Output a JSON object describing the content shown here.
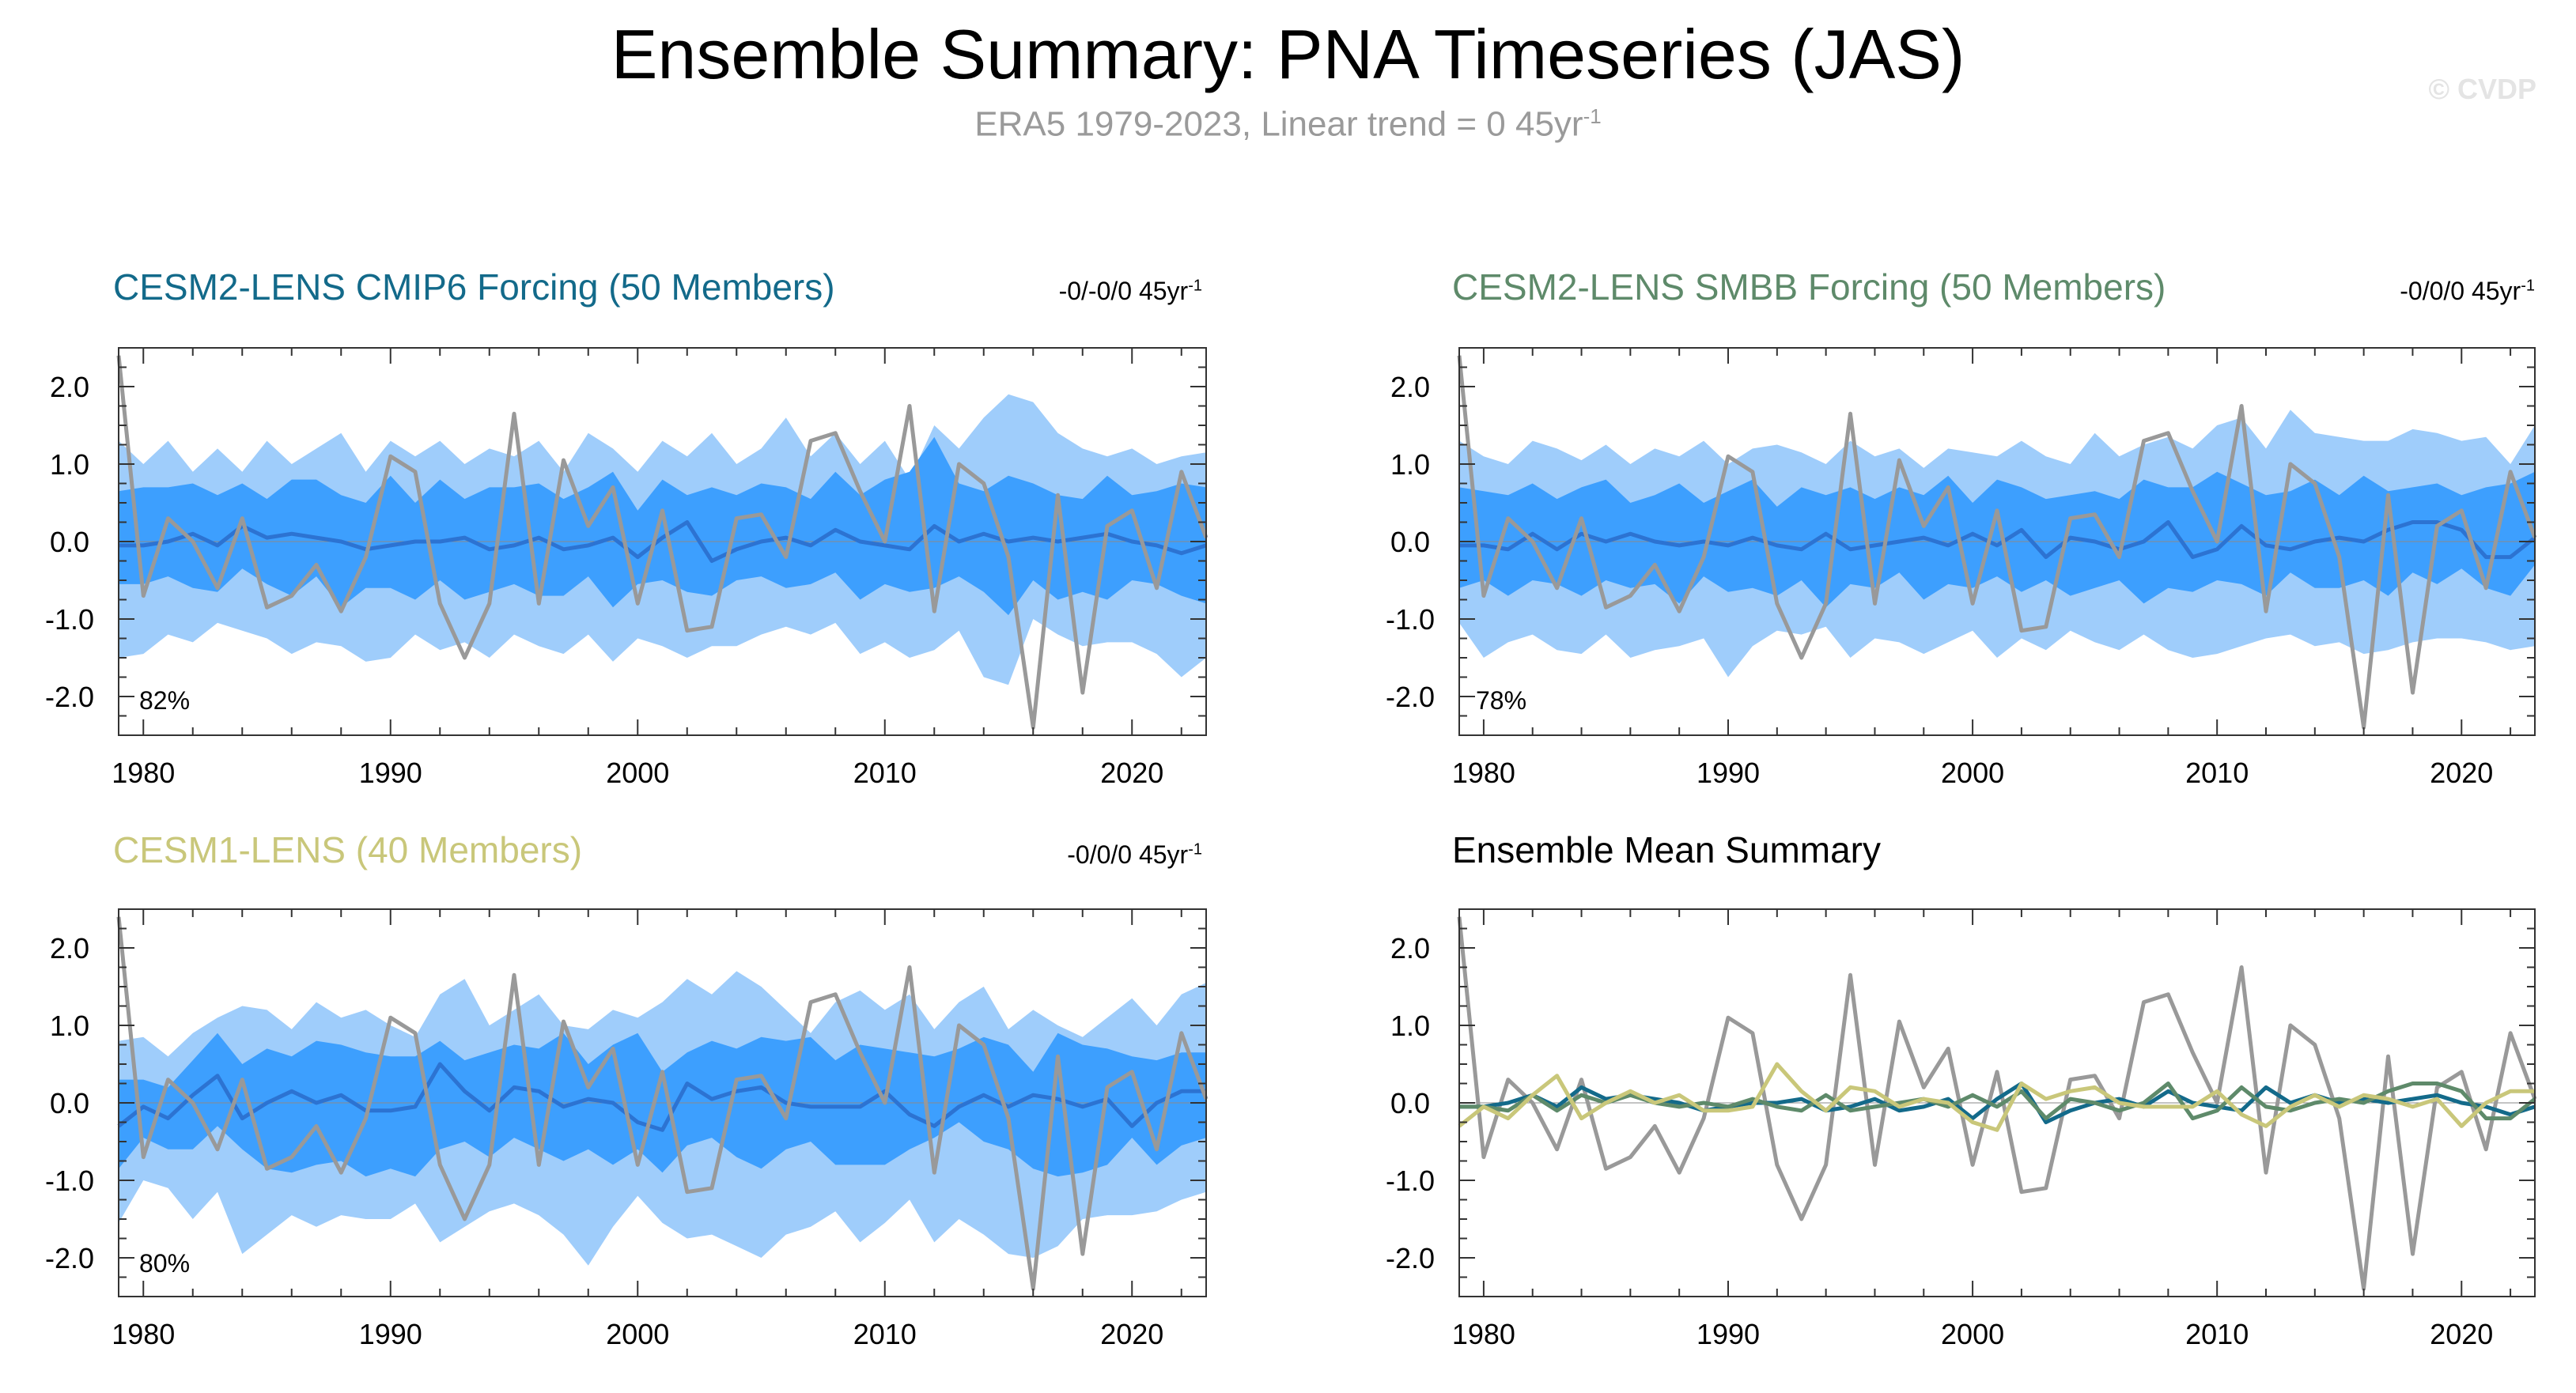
{
  "figure": {
    "title": "Ensemble Summary: PNA Timeseries (JAS)",
    "subtitle_main": "ERA5 1979-2023, Linear trend = 0 45yr",
    "subtitle_sup": "-1",
    "watermark": "© CVDP"
  },
  "colors": {
    "obs": "#999999",
    "outer_band": "#9fcdfb",
    "inner_band": "#3d9ffe",
    "cmip6": "#136a8a",
    "smbb": "#5e8a6a",
    "cesm1": "#c9c77a",
    "mean_line": "#2c73d2",
    "axis": "#333333"
  },
  "panels": [
    {
      "title": "CESM2-LENS CMIP6 Forcing (50 Members)",
      "title_color": "#136a8a",
      "trend": "-0/-0/0 45yr",
      "trend_sup": "-1",
      "percent": "82%"
    },
    {
      "title": "CESM2-LENS SMBB Forcing (50 Members)",
      "title_color": "#5e8a6a",
      "trend": "-0/0/0 45yr",
      "trend_sup": "-1",
      "percent": "78%"
    },
    {
      "title": "CESM1-LENS (40 Members)",
      "title_color": "#c9c77a",
      "trend": "-0/0/0 45yr",
      "trend_sup": "-1",
      "percent": "80%"
    },
    {
      "title": "Ensemble Mean Summary",
      "title_color": "#000000",
      "trend": "",
      "trend_sup": "",
      "percent": ""
    }
  ],
  "chart_data": [
    {
      "type": "area",
      "panel": "CESM2-LENS CMIP6 Forcing (50 Members)",
      "xlim": [
        1979,
        2023
      ],
      "ylim": [
        -2.5,
        2.5
      ],
      "xticks": [
        "1980",
        "1990",
        "2000",
        "2010",
        "2020"
      ],
      "yticks": [
        "2.0",
        "1.0",
        "0.0",
        "-1.0",
        "-2.0"
      ],
      "x_start": 1979,
      "obs": [
        2.4,
        -0.7,
        0.3,
        0.0,
        -0.6,
        0.3,
        -0.85,
        -0.7,
        -0.3,
        -0.9,
        -0.2,
        1.1,
        0.9,
        -0.8,
        -1.5,
        -0.8,
        1.65,
        -0.8,
        1.05,
        0.2,
        0.7,
        -0.8,
        0.4,
        -1.15,
        -1.1,
        0.3,
        0.35,
        -0.2,
        1.3,
        1.4,
        0.65,
        0.0,
        1.75,
        -0.9,
        1.0,
        0.75,
        -0.2,
        -2.4,
        0.6,
        -1.95,
        0.2,
        0.4,
        -0.6,
        0.9,
        0.05
      ],
      "outer_high": [
        1.3,
        1.0,
        1.3,
        0.9,
        1.2,
        0.9,
        1.3,
        1.0,
        1.2,
        1.4,
        0.9,
        1.3,
        1.1,
        1.3,
        1.0,
        1.2,
        1.1,
        1.3,
        0.9,
        1.4,
        1.2,
        0.9,
        1.3,
        1.1,
        1.4,
        1.0,
        1.2,
        1.6,
        1.1,
        1.4,
        1.0,
        1.3,
        0.8,
        1.5,
        1.2,
        1.6,
        1.9,
        1.8,
        1.4,
        1.2,
        1.1,
        1.2,
        1.0,
        1.1,
        1.15
      ],
      "outer_low": [
        -1.5,
        -1.45,
        -1.2,
        -1.3,
        -1.05,
        -1.15,
        -1.25,
        -1.45,
        -1.3,
        -1.35,
        -1.55,
        -1.5,
        -1.2,
        -1.4,
        -1.3,
        -1.5,
        -1.2,
        -1.35,
        -1.45,
        -1.2,
        -1.55,
        -1.25,
        -1.35,
        -1.5,
        -1.35,
        -1.35,
        -1.2,
        -1.1,
        -1.2,
        -1.05,
        -1.45,
        -1.3,
        -1.5,
        -1.4,
        -1.15,
        -1.75,
        -1.85,
        -1.0,
        -1.2,
        -1.35,
        -1.3,
        -1.3,
        -1.45,
        -1.75,
        -1.5
      ],
      "inner_high": [
        0.65,
        0.7,
        0.7,
        0.75,
        0.6,
        0.75,
        0.55,
        0.8,
        0.8,
        0.6,
        0.5,
        0.85,
        0.5,
        0.8,
        0.55,
        0.7,
        0.7,
        0.75,
        0.55,
        0.7,
        0.9,
        0.4,
        0.8,
        0.6,
        0.7,
        0.6,
        0.75,
        0.7,
        0.55,
        0.9,
        0.6,
        0.8,
        0.9,
        1.35,
        0.75,
        0.65,
        0.85,
        0.75,
        0.6,
        0.55,
        0.85,
        0.6,
        0.65,
        0.75,
        0.7
      ],
      "inner_low": [
        -0.55,
        -0.55,
        -0.45,
        -0.6,
        -0.65,
        -0.35,
        -0.55,
        -0.7,
        -0.45,
        -0.85,
        -0.6,
        -0.6,
        -0.75,
        -0.5,
        -0.75,
        -0.65,
        -0.55,
        -0.7,
        -0.7,
        -0.45,
        -0.85,
        -0.55,
        -0.5,
        -0.65,
        -0.7,
        -0.5,
        -0.45,
        -0.6,
        -0.55,
        -0.4,
        -0.75,
        -0.55,
        -0.65,
        -0.6,
        -0.45,
        -0.65,
        -0.95,
        -0.5,
        -0.75,
        -0.65,
        -0.75,
        -0.5,
        -0.55,
        -0.7,
        -0.8
      ],
      "mean": [
        -0.05,
        -0.05,
        0.0,
        0.1,
        -0.05,
        0.2,
        0.05,
        0.1,
        0.05,
        0.0,
        -0.1,
        -0.05,
        0.0,
        0.0,
        0.05,
        -0.1,
        -0.05,
        0.05,
        -0.1,
        -0.05,
        0.05,
        -0.2,
        0.05,
        0.25,
        -0.25,
        -0.1,
        0.0,
        0.05,
        -0.05,
        0.15,
        0.0,
        -0.05,
        -0.1,
        0.2,
        0.0,
        0.1,
        0.0,
        0.05,
        0.0,
        0.05,
        0.1,
        0.0,
        -0.05,
        -0.15,
        -0.05
      ]
    },
    {
      "type": "area",
      "panel": "CESM2-LENS SMBB Forcing (50 Members)",
      "xlim": [
        1979,
        2023
      ],
      "ylim": [
        -2.5,
        2.5
      ],
      "xticks": [
        "1980",
        "1990",
        "2000",
        "2010",
        "2020"
      ],
      "yticks": [
        "2.0",
        "1.0",
        "0.0",
        "-1.0",
        "-2.0"
      ],
      "x_start": 1979,
      "obs": [
        2.4,
        -0.7,
        0.3,
        0.0,
        -0.6,
        0.3,
        -0.85,
        -0.7,
        -0.3,
        -0.9,
        -0.2,
        1.1,
        0.9,
        -0.8,
        -1.5,
        -0.8,
        1.65,
        -0.8,
        1.05,
        0.2,
        0.7,
        -0.8,
        0.4,
        -1.15,
        -1.1,
        0.3,
        0.35,
        -0.2,
        1.3,
        1.4,
        0.65,
        0.0,
        1.75,
        -0.9,
        1.0,
        0.75,
        -0.2,
        -2.4,
        0.6,
        -1.95,
        0.2,
        0.4,
        -0.6,
        0.9,
        0.05
      ],
      "outer_high": [
        1.3,
        1.1,
        1.0,
        1.3,
        1.2,
        1.05,
        1.25,
        1.0,
        1.2,
        1.1,
        1.3,
        1.0,
        1.2,
        1.25,
        1.15,
        1.0,
        1.3,
        1.1,
        1.2,
        0.95,
        1.2,
        1.15,
        1.1,
        1.3,
        1.1,
        1.0,
        1.4,
        1.1,
        1.25,
        1.35,
        1.2,
        1.5,
        1.6,
        1.2,
        1.7,
        1.4,
        1.35,
        1.3,
        1.3,
        1.45,
        1.4,
        1.3,
        1.35,
        1.0,
        1.5
      ],
      "outer_low": [
        -1.05,
        -1.5,
        -1.3,
        -1.2,
        -1.4,
        -1.45,
        -1.2,
        -1.5,
        -1.4,
        -1.35,
        -1.25,
        -1.75,
        -1.35,
        -1.15,
        -1.2,
        -1.1,
        -1.5,
        -1.25,
        -1.3,
        -1.45,
        -1.3,
        -1.15,
        -1.5,
        -1.25,
        -1.4,
        -1.15,
        -1.3,
        -1.4,
        -1.2,
        -1.4,
        -1.5,
        -1.45,
        -1.35,
        -1.25,
        -1.2,
        -1.35,
        -1.3,
        -1.45,
        -1.4,
        -1.3,
        -1.25,
        -1.25,
        -1.3,
        -1.4,
        -1.35
      ],
      "inner_high": [
        0.7,
        0.65,
        0.6,
        0.75,
        0.55,
        0.7,
        0.8,
        0.5,
        0.6,
        0.75,
        0.5,
        0.65,
        0.8,
        0.45,
        0.7,
        0.6,
        0.7,
        0.55,
        0.7,
        0.6,
        0.85,
        0.5,
        0.8,
        0.7,
        0.55,
        0.6,
        0.65,
        0.55,
        0.8,
        0.7,
        0.7,
        0.9,
        0.75,
        0.6,
        0.65,
        0.8,
        0.6,
        0.85,
        0.65,
        0.7,
        0.75,
        0.6,
        0.7,
        0.75,
        0.9
      ],
      "inner_low": [
        -0.6,
        -0.5,
        -0.7,
        -0.5,
        -0.55,
        -0.7,
        -0.5,
        -0.6,
        -0.55,
        -0.8,
        -0.45,
        -0.65,
        -0.6,
        -0.7,
        -0.5,
        -0.85,
        -0.55,
        -0.6,
        -0.4,
        -0.75,
        -0.55,
        -0.6,
        -0.45,
        -0.65,
        -0.5,
        -0.7,
        -0.6,
        -0.5,
        -0.8,
        -0.6,
        -0.65,
        -0.5,
        -0.55,
        -0.7,
        -0.4,
        -0.6,
        -0.6,
        -0.5,
        -0.7,
        -0.4,
        -0.55,
        -0.35,
        -0.6,
        -0.7,
        -0.3
      ],
      "mean": [
        -0.05,
        -0.05,
        -0.1,
        0.1,
        -0.1,
        0.1,
        0.0,
        0.1,
        0.0,
        -0.05,
        0.0,
        -0.05,
        0.05,
        -0.05,
        -0.1,
        0.1,
        -0.1,
        -0.05,
        0.0,
        0.05,
        -0.05,
        0.1,
        -0.05,
        0.15,
        -0.2,
        0.05,
        0.0,
        -0.1,
        0.0,
        0.25,
        -0.2,
        -0.1,
        0.2,
        -0.05,
        -0.1,
        0.0,
        0.05,
        0.0,
        0.15,
        0.25,
        0.25,
        0.15,
        -0.2,
        -0.2,
        0.05
      ]
    },
    {
      "type": "area",
      "panel": "CESM1-LENS (40 Members)",
      "xlim": [
        1979,
        2023
      ],
      "ylim": [
        -2.5,
        2.5
      ],
      "xticks": [
        "1980",
        "1990",
        "2000",
        "2010",
        "2020"
      ],
      "yticks": [
        "2.0",
        "1.0",
        "0.0",
        "-1.0",
        "-2.0"
      ],
      "x_start": 1979,
      "obs": [
        2.4,
        -0.7,
        0.3,
        0.0,
        -0.6,
        0.3,
        -0.85,
        -0.7,
        -0.3,
        -0.9,
        -0.2,
        1.1,
        0.9,
        -0.8,
        -1.5,
        -0.8,
        1.65,
        -0.8,
        1.05,
        0.2,
        0.7,
        -0.8,
        0.4,
        -1.15,
        -1.1,
        0.3,
        0.35,
        -0.2,
        1.3,
        1.4,
        0.65,
        0.0,
        1.75,
        -0.9,
        1.0,
        0.75,
        -0.2,
        -2.4,
        0.6,
        -1.95,
        0.2,
        0.4,
        -0.6,
        0.9,
        0.05
      ],
      "outer_high": [
        0.8,
        0.85,
        0.6,
        0.9,
        1.1,
        1.25,
        1.2,
        0.95,
        1.3,
        1.1,
        1.2,
        1.0,
        0.85,
        1.4,
        1.6,
        1.0,
        1.2,
        1.4,
        1.0,
        0.95,
        1.2,
        1.1,
        1.3,
        1.6,
        1.4,
        1.7,
        1.5,
        1.2,
        0.9,
        1.3,
        1.45,
        1.2,
        1.4,
        0.95,
        1.3,
        1.5,
        0.95,
        1.2,
        1.0,
        0.85,
        1.1,
        1.35,
        1.0,
        1.4,
        1.55
      ],
      "outer_low": [
        -1.55,
        -1.0,
        -1.1,
        -1.5,
        -1.15,
        -1.95,
        -1.7,
        -1.45,
        -1.6,
        -1.45,
        -1.5,
        -1.5,
        -1.3,
        -1.8,
        -1.6,
        -1.4,
        -1.3,
        -1.45,
        -1.7,
        -2.1,
        -1.6,
        -1.2,
        -1.55,
        -1.75,
        -1.7,
        -1.85,
        -2.0,
        -1.7,
        -1.6,
        -1.4,
        -1.8,
        -1.55,
        -1.25,
        -1.8,
        -1.5,
        -1.7,
        -1.95,
        -2.0,
        -1.85,
        -1.5,
        -1.45,
        -1.45,
        -1.4,
        -1.25,
        -1.15
      ],
      "inner_high": [
        0.3,
        0.3,
        0.2,
        0.55,
        0.9,
        0.5,
        0.7,
        0.6,
        0.8,
        0.75,
        0.65,
        0.6,
        0.6,
        0.8,
        0.55,
        0.65,
        0.75,
        0.7,
        0.9,
        0.5,
        0.75,
        0.9,
        0.4,
        0.65,
        0.8,
        0.7,
        0.85,
        0.8,
        0.85,
        0.55,
        0.75,
        0.7,
        0.65,
        0.6,
        0.7,
        0.85,
        0.75,
        0.4,
        0.9,
        0.75,
        0.7,
        0.6,
        0.55,
        0.65,
        0.65
      ],
      "inner_low": [
        -0.85,
        -0.45,
        -0.6,
        -0.6,
        -0.3,
        -0.6,
        -0.85,
        -0.9,
        -0.8,
        -0.75,
        -0.95,
        -0.85,
        -0.95,
        -0.6,
        -0.5,
        -0.7,
        -0.45,
        -0.6,
        -0.75,
        -0.6,
        -0.8,
        -0.6,
        -0.9,
        -0.55,
        -0.45,
        -0.7,
        -0.85,
        -0.6,
        -0.5,
        -0.8,
        -0.8,
        -0.8,
        -0.6,
        -0.45,
        -0.25,
        -0.5,
        -0.6,
        -0.85,
        -0.95,
        -0.9,
        -0.8,
        -0.45,
        -0.8,
        -0.55,
        -0.45
      ],
      "mean": [
        -0.3,
        -0.05,
        -0.2,
        0.1,
        0.35,
        -0.2,
        0.0,
        0.15,
        0.0,
        0.1,
        -0.1,
        -0.1,
        -0.05,
        0.5,
        0.15,
        -0.1,
        0.2,
        0.15,
        -0.05,
        0.05,
        0.0,
        -0.25,
        -0.35,
        0.25,
        0.05,
        0.15,
        0.2,
        0.0,
        -0.05,
        -0.05,
        -0.05,
        0.15,
        -0.15,
        -0.3,
        -0.05,
        0.1,
        -0.05,
        0.1,
        0.05,
        -0.05,
        0.05,
        -0.3,
        0.0,
        0.15,
        0.15
      ]
    },
    {
      "type": "line",
      "panel": "Ensemble Mean Summary",
      "xlim": [
        1979,
        2023
      ],
      "ylim": [
        -2.5,
        2.5
      ],
      "xticks": [
        "1980",
        "1990",
        "2000",
        "2010",
        "2020"
      ],
      "yticks": [
        "2.0",
        "1.0",
        "0.0",
        "-1.0",
        "-2.0"
      ],
      "x_start": 1979,
      "obs": [
        2.4,
        -0.7,
        0.3,
        0.0,
        -0.6,
        0.3,
        -0.85,
        -0.7,
        -0.3,
        -0.9,
        -0.2,
        1.1,
        0.9,
        -0.8,
        -1.5,
        -0.8,
        1.65,
        -0.8,
        1.05,
        0.2,
        0.7,
        -0.8,
        0.4,
        -1.15,
        -1.1,
        0.3,
        0.35,
        -0.2,
        1.3,
        1.4,
        0.65,
        0.0,
        1.75,
        -0.9,
        1.0,
        0.75,
        -0.2,
        -2.4,
        0.6,
        -1.95,
        0.2,
        0.4,
        -0.6,
        0.9,
        0.05
      ],
      "series": [
        {
          "color_key": "cmip6",
          "values": [
            -0.05,
            -0.05,
            0.0,
            0.1,
            -0.05,
            0.2,
            0.05,
            0.1,
            0.05,
            0.0,
            -0.1,
            -0.05,
            0.0,
            0.0,
            0.05,
            -0.1,
            -0.05,
            0.05,
            -0.1,
            -0.05,
            0.05,
            -0.2,
            0.05,
            0.25,
            -0.25,
            -0.1,
            0.0,
            0.05,
            -0.05,
            0.15,
            0.0,
            -0.05,
            -0.1,
            0.2,
            0.0,
            0.1,
            0.0,
            0.05,
            0.0,
            0.05,
            0.1,
            0.0,
            -0.05,
            -0.15,
            -0.05
          ]
        },
        {
          "color_key": "smbb",
          "values": [
            -0.05,
            -0.05,
            -0.1,
            0.1,
            -0.1,
            0.1,
            0.0,
            0.1,
            0.0,
            -0.05,
            0.0,
            -0.05,
            0.05,
            -0.05,
            -0.1,
            0.1,
            -0.1,
            -0.05,
            0.0,
            0.05,
            -0.05,
            0.1,
            -0.05,
            0.15,
            -0.2,
            0.05,
            0.0,
            -0.1,
            0.0,
            0.25,
            -0.2,
            -0.1,
            0.2,
            -0.05,
            -0.1,
            0.0,
            0.05,
            0.0,
            0.15,
            0.25,
            0.25,
            0.15,
            -0.2,
            -0.2,
            0.05
          ]
        },
        {
          "color_key": "cesm1",
          "values": [
            -0.3,
            -0.05,
            -0.2,
            0.1,
            0.35,
            -0.2,
            0.0,
            0.15,
            0.0,
            0.1,
            -0.1,
            -0.1,
            -0.05,
            0.5,
            0.15,
            -0.1,
            0.2,
            0.15,
            -0.05,
            0.05,
            0.0,
            -0.25,
            -0.35,
            0.25,
            0.05,
            0.15,
            0.2,
            0.0,
            -0.05,
            -0.05,
            -0.05,
            0.15,
            -0.15,
            -0.3,
            -0.05,
            0.1,
            -0.05,
            0.1,
            0.05,
            -0.05,
            0.05,
            -0.3,
            0.0,
            0.15,
            0.15
          ]
        }
      ]
    }
  ]
}
